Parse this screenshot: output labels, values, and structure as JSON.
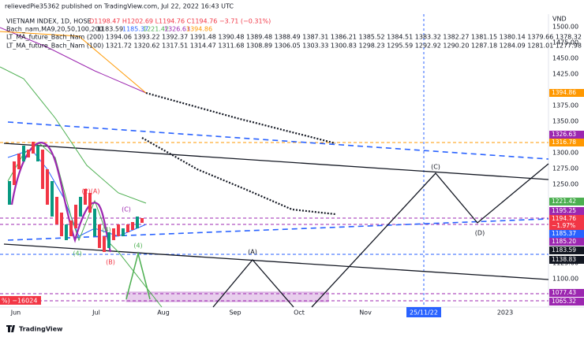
{
  "header": {
    "published": "relievedPie35362 published on TradingView.com, Jul 22, 2022 16:43 UTC",
    "symbol": "VIETNAM INDEX, 1D, HOSE",
    "ohlc": "O1198.47 H1202.69 L1194.76 C1194.76 −3.71 (−0.31%)",
    "ma_legend": "Bach_nam,MA9,20,50,100,200",
    "ma_values": [
      "1183.59",
      "1185.37",
      "1221.42",
      "1326.63",
      "1394.86"
    ],
    "lt200": "LT_MA_future_Bach_Nam (200)  1394.06  1393.22  1392.37  1391.48  1390.48  1389.48  1388.49  1387.31  1386.21  1385.52  1384.51  1383.32  1382.27  1381.15  1380.14  1379.66  1378.32  1377.30",
    "lt100": "LT_MA_future_Bach_Nam (100)  1321.72  1320.62  1317.51  1314.47  1311.68  1308.89  1306.05  1303.33  1300.83  1298.23  1295.59  1292.92  1290.20  1287.18  1284.09  1281.01  1277.98  1274.94"
  },
  "price_axis": {
    "unit": "VND",
    "ticks": [
      "1500.00",
      "1475.00",
      "1450.00",
      "1425.00",
      "1375.00",
      "1350.00",
      "1300.00",
      "1275.00",
      "1250.00",
      "1125.00",
      "1100.00"
    ]
  },
  "price_tags": [
    {
      "label": "1394.86",
      "color": "#ff9800"
    },
    {
      "label": "1326.63",
      "color": "#9c27b0"
    },
    {
      "label": "1316.78",
      "color": "#ff9800"
    },
    {
      "label": "1221.42",
      "color": "#4caf50"
    },
    {
      "label": "1195.25",
      "color": "#9c27b0"
    },
    {
      "label": "1194.76",
      "color": "#f23645"
    },
    {
      "label": "−1.97%",
      "color": "#f23645"
    },
    {
      "label": "1185.37",
      "color": "#2962ff"
    },
    {
      "label": "1185.20",
      "color": "#9c27b0"
    },
    {
      "label": "1183.59",
      "color": "#131722"
    },
    {
      "label": "1138.83",
      "color": "#131722"
    },
    {
      "label": "1077.43",
      "color": "#9c27b0"
    },
    {
      "label": "1065.32",
      "color": "#9c27b0"
    }
  ],
  "time_axis": [
    "Jun",
    "Jul",
    "Aug",
    "Sep",
    "Oct",
    "Nov",
    "25/11/22",
    "2023"
  ],
  "annotations": [
    "(C)",
    "(D)",
    "(A)",
    "(2)(A)",
    "(C)",
    "(B)",
    "(4)",
    "(4)",
    "(4)"
  ],
  "left_label": "%) −16024",
  "footer": "TradingView"
}
